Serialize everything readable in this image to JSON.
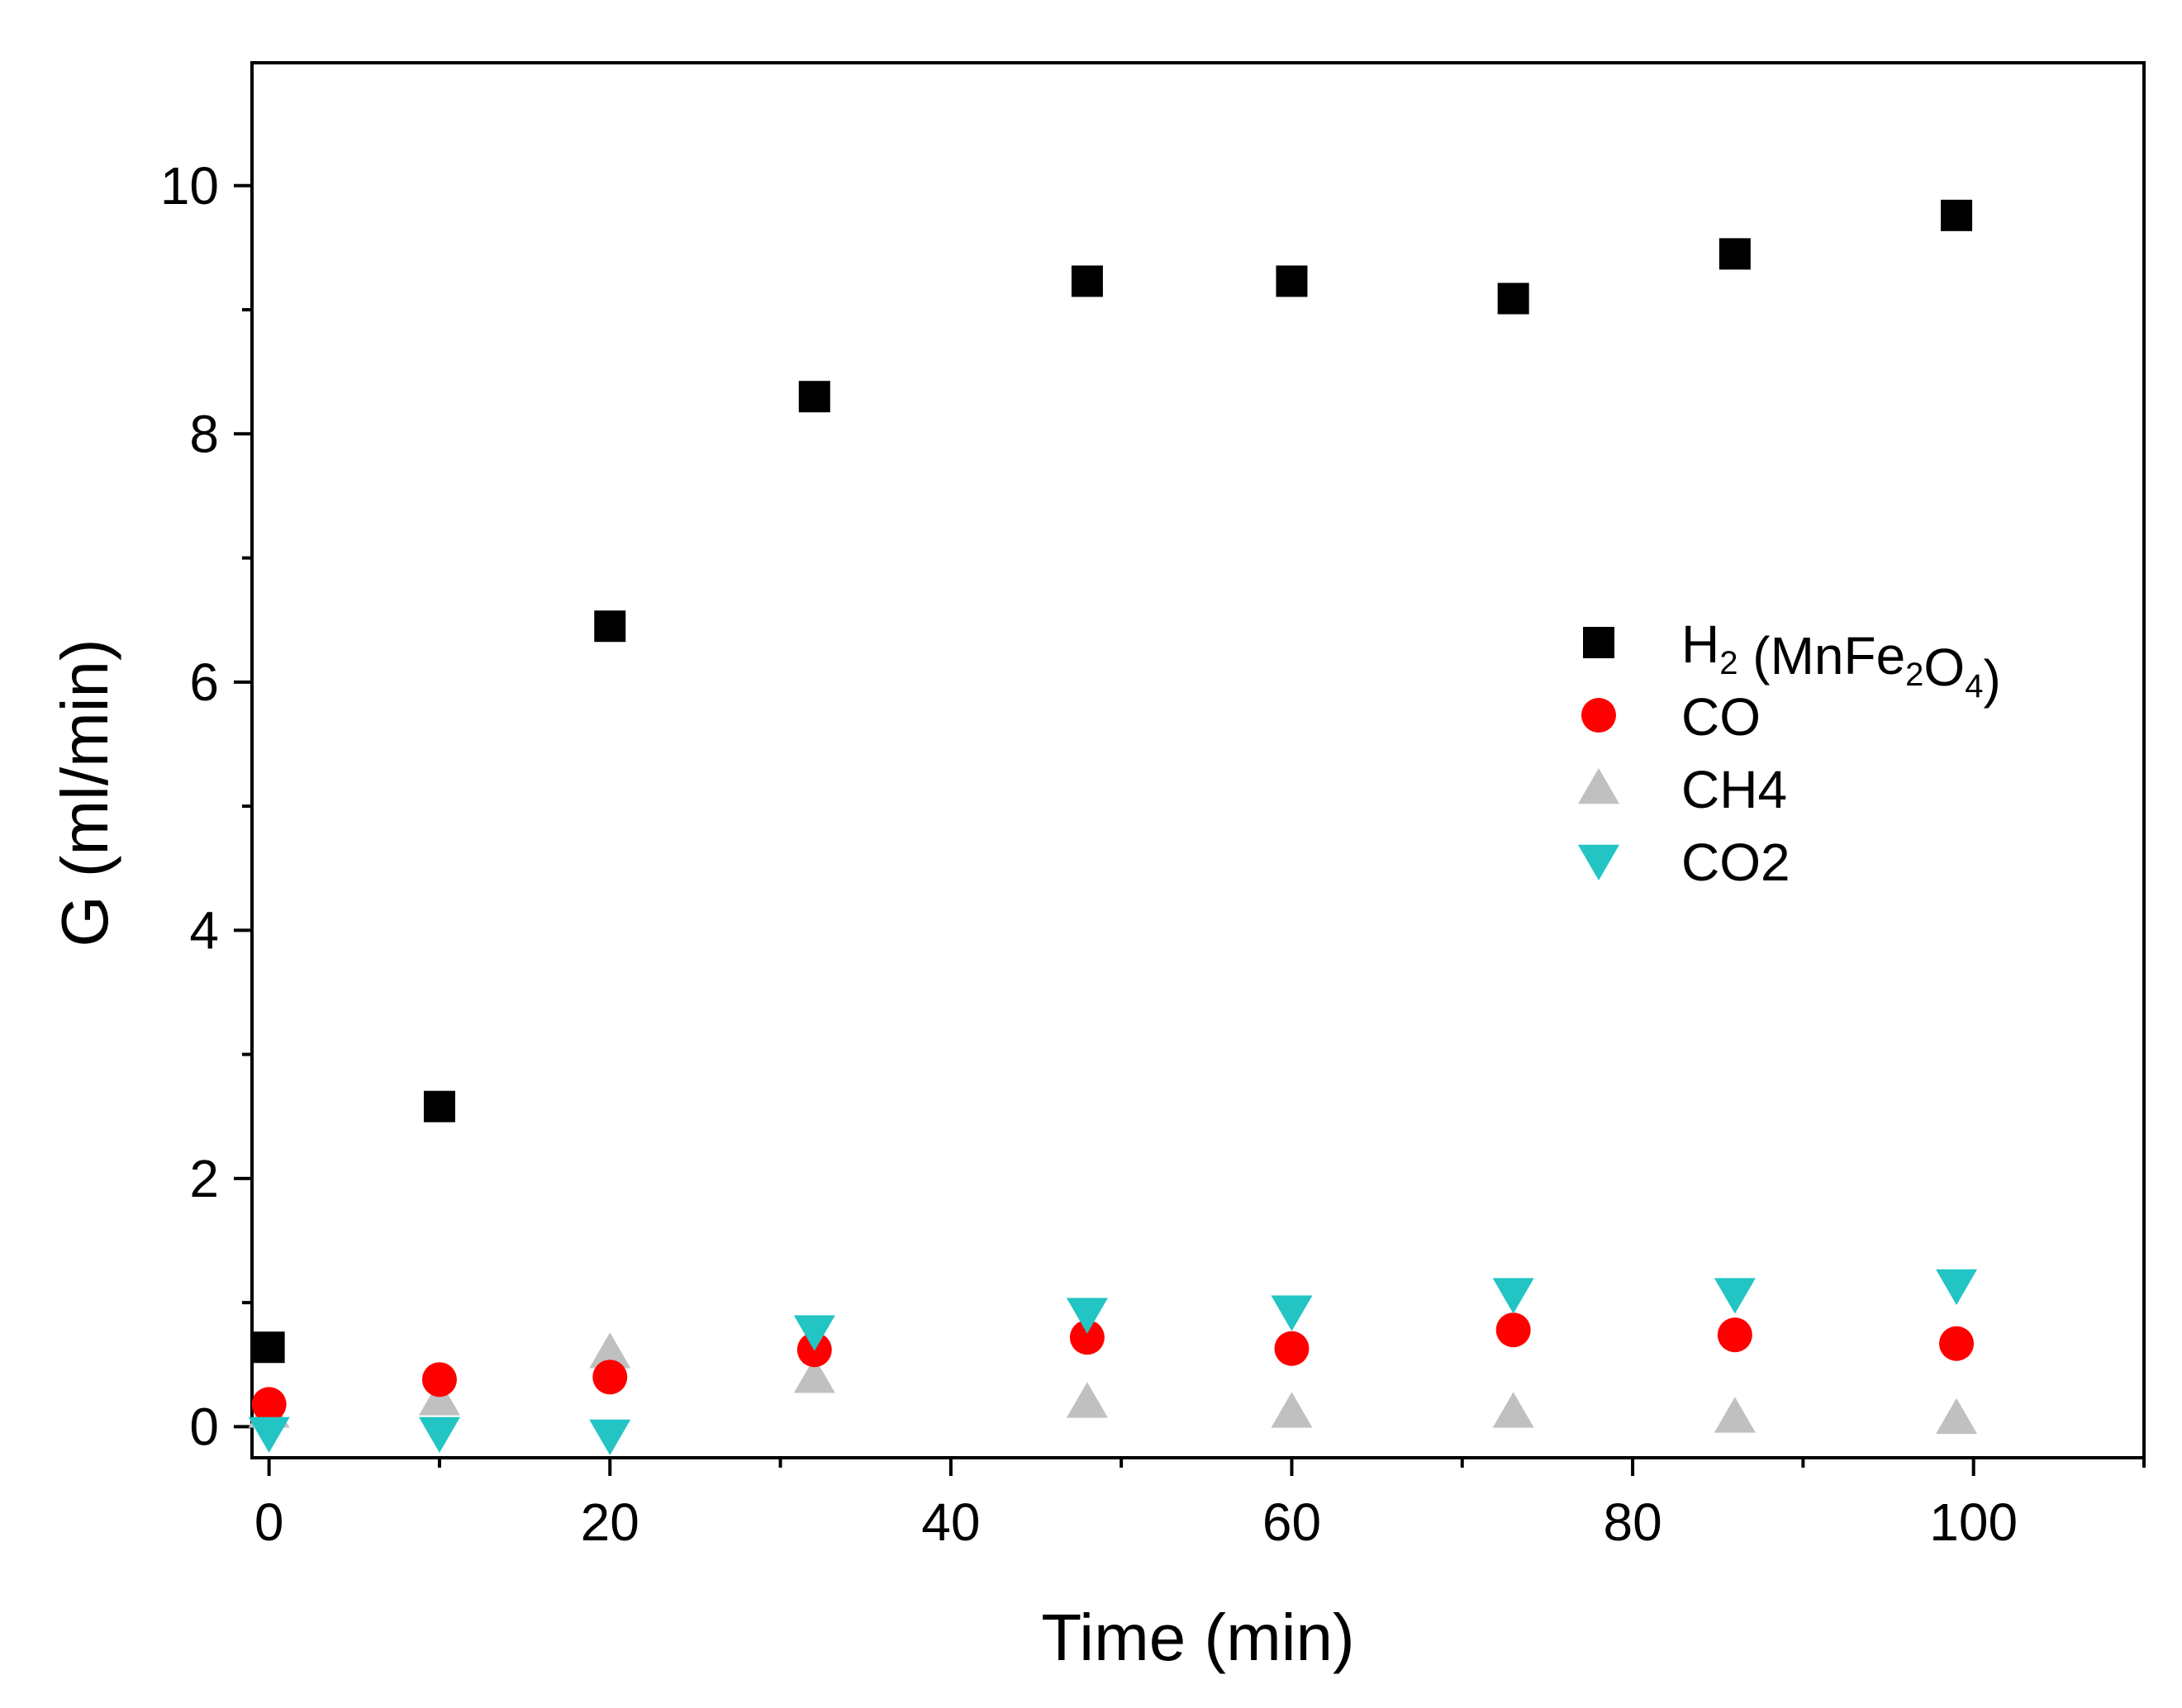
{
  "chart_data": {
    "type": "scatter",
    "title": "",
    "xlabel": "Time (min)",
    "ylabel": "G (ml/min)",
    "xlim": [
      -1,
      110
    ],
    "ylim": [
      -0.25,
      10.99
    ],
    "xticks": [
      0,
      20,
      40,
      60,
      80,
      100
    ],
    "yticks": [
      0,
      2,
      4,
      6,
      8,
      10
    ],
    "xtick_labels": [
      "0",
      "20",
      "40",
      "60",
      "80",
      "100"
    ],
    "ytick_labels": [
      "0",
      "2",
      "4",
      "6",
      "8",
      "10"
    ],
    "legend_position": "right",
    "series": [
      {
        "name": "H2 (MnFe2O4)",
        "legend_parts": [
          {
            "text": "H",
            "sub": false
          },
          {
            "text": "2",
            "sub": true
          },
          {
            "text": " (MnFe",
            "sub": false
          },
          {
            "text": "2",
            "sub": true
          },
          {
            "text": "O",
            "sub": false
          },
          {
            "text": "4",
            "sub": true
          },
          {
            "text": ")",
            "sub": false
          }
        ],
        "marker": "square",
        "color": "#000000",
        "x": [
          0,
          10,
          20,
          32,
          48,
          60,
          73,
          86,
          99
        ],
        "y": [
          0.64,
          2.58,
          6.45,
          8.3,
          9.23,
          9.23,
          9.09,
          9.45,
          9.76
        ]
      },
      {
        "name": "CO",
        "legend_parts": [
          {
            "text": "CO",
            "sub": false
          }
        ],
        "marker": "circle",
        "color": "#ff0000",
        "x": [
          0,
          10,
          20,
          32,
          48,
          60,
          73,
          86,
          99
        ],
        "y": [
          0.18,
          0.38,
          0.4,
          0.62,
          0.72,
          0.63,
          0.78,
          0.74,
          0.67
        ]
      },
      {
        "name": "CH4",
        "legend_parts": [
          {
            "text": "CH4",
            "sub": false
          }
        ],
        "marker": "triangle-up",
        "color": "#c0c0c0",
        "x": [
          0,
          10,
          20,
          32,
          48,
          60,
          73,
          86,
          99
        ],
        "y": [
          0.12,
          0.22,
          0.6,
          0.4,
          0.2,
          0.12,
          0.12,
          0.08,
          0.07
        ]
      },
      {
        "name": "CO2",
        "legend_parts": [
          {
            "text": "CO2",
            "sub": false
          }
        ],
        "marker": "triangle-down",
        "color": "#22c4c4",
        "x": [
          0,
          10,
          20,
          32,
          48,
          60,
          73,
          86,
          99
        ],
        "y": [
          -0.05,
          -0.05,
          -0.07,
          0.77,
          0.91,
          0.93,
          1.07,
          1.07,
          1.14
        ]
      }
    ]
  }
}
